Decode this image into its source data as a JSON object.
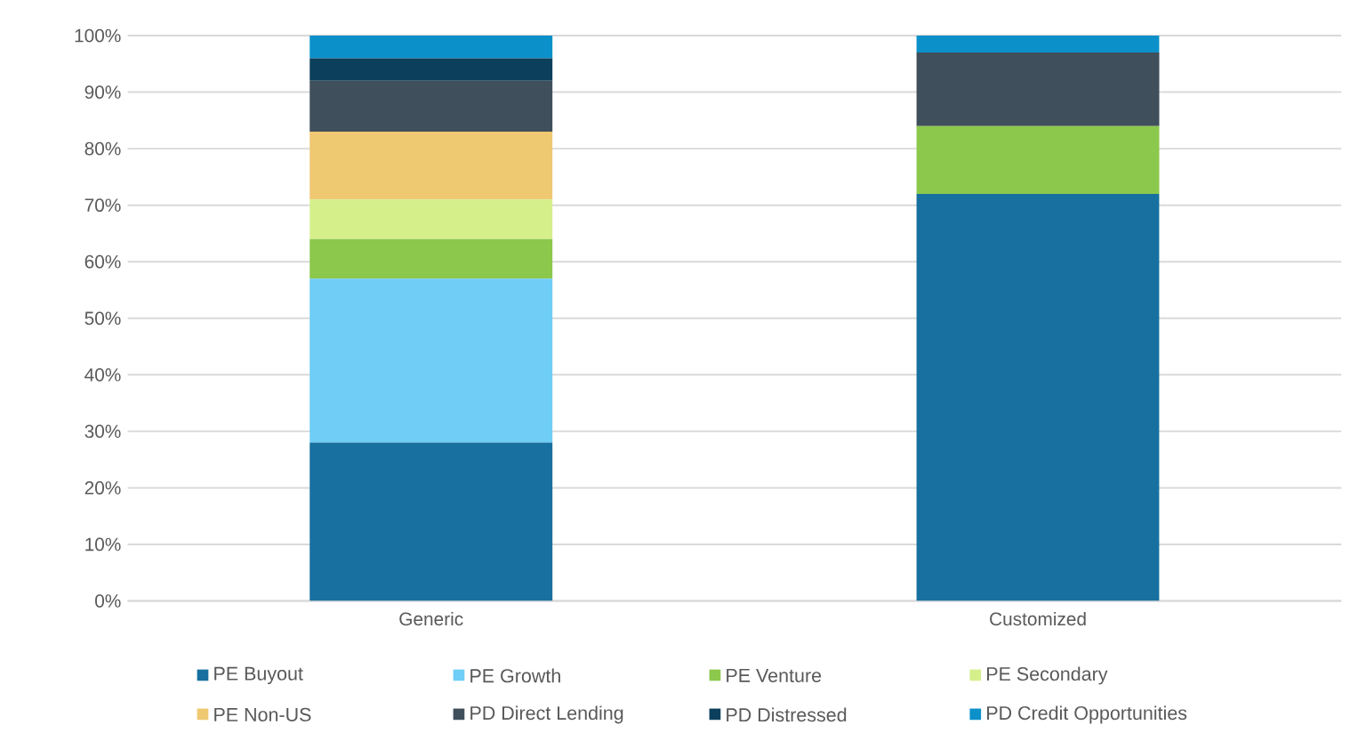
{
  "chart_data": {
    "type": "bar",
    "stacked": true,
    "categories": [
      "Generic",
      "Customized"
    ],
    "series": [
      {
        "name": "PE Buyout",
        "color": "#17709f",
        "values": [
          28,
          72
        ]
      },
      {
        "name": "PE Growth",
        "color": "#6fcdf6",
        "values": [
          29,
          0
        ]
      },
      {
        "name": "PE Venture",
        "color": "#8cc84b",
        "values": [
          7,
          12
        ]
      },
      {
        "name": "PE Secondary",
        "color": "#d5ef8b",
        "values": [
          7,
          0
        ]
      },
      {
        "name": "PE Non-US",
        "color": "#efc872",
        "values": [
          12,
          0
        ]
      },
      {
        "name": "PD Direct Lending",
        "color": "#404f5c",
        "values": [
          9,
          13
        ]
      },
      {
        "name": "PD Distressed",
        "color": "#0c3f5c",
        "values": [
          4,
          0
        ]
      },
      {
        "name": "PD Credit Opportunities",
        "color": "#0b90c9",
        "values": [
          4,
          3
        ]
      }
    ],
    "ylim": [
      0,
      100
    ],
    "yticks": [
      {
        "value": 0,
        "label": "0%"
      },
      {
        "value": 10,
        "label": "10%"
      },
      {
        "value": 20,
        "label": "20%"
      },
      {
        "value": 30,
        "label": "30%"
      },
      {
        "value": 40,
        "label": "40%"
      },
      {
        "value": 50,
        "label": "50%"
      },
      {
        "value": 60,
        "label": "60%"
      },
      {
        "value": 70,
        "label": "70%"
      },
      {
        "value": 80,
        "label": "80%"
      },
      {
        "value": 90,
        "label": "90%"
      },
      {
        "value": 100,
        "label": "100%"
      }
    ],
    "grid": "y",
    "legend": "bottom"
  }
}
